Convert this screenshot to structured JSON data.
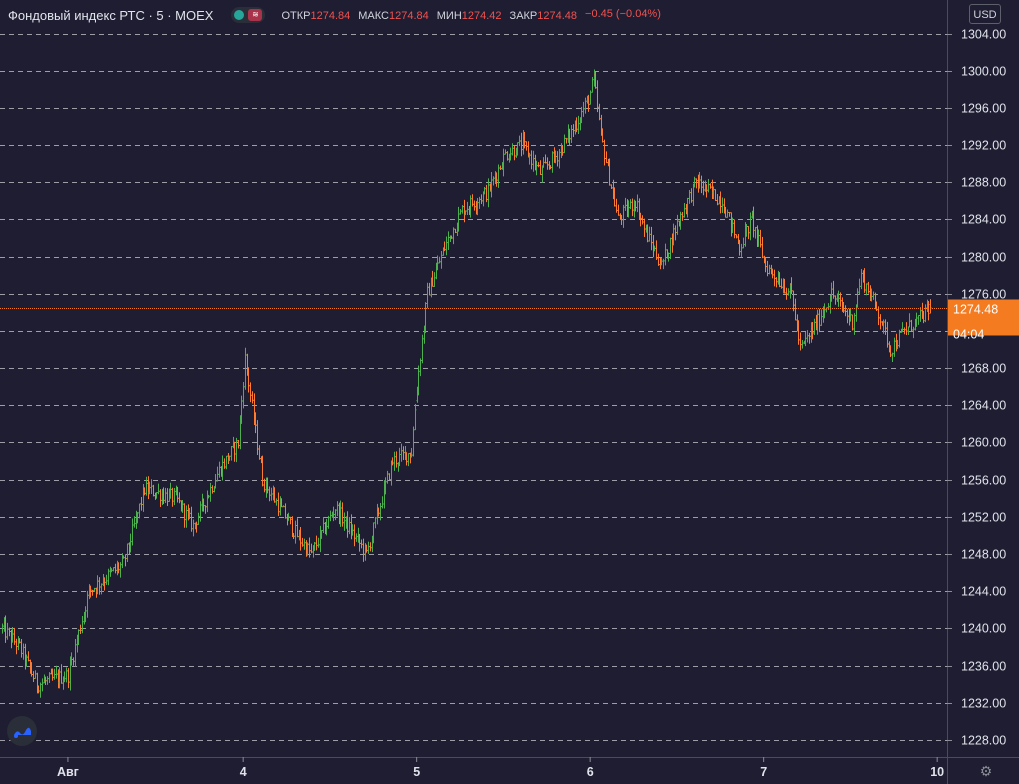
{
  "legend": {
    "symbol": "Фондовый индекс РТС · 5 · MOEX",
    "open_label": "ОТКР",
    "open": "1274.84",
    "high_label": "МАКС",
    "high": "1274.84",
    "low_label": "МИН",
    "low": "1274.42",
    "close_label": "ЗАКР",
    "close": "1274.48",
    "change": "−0.45 (−0.04%)"
  },
  "currency": "USD",
  "colors": {
    "up": "#4caf50",
    "down": "#ff7b32",
    "background": "#1e1d31",
    "price_tag": "#f47b20"
  },
  "icons": {
    "logo": "tradingview-logo-icon",
    "settings": "gear-icon",
    "toggle": "toggle-icon"
  },
  "chart_data": {
    "type": "bar",
    "title": "Фондовый индекс РТС",
    "ylim": [
      1226,
      1306
    ],
    "y_ticks": [
      "1304.00",
      "1300.00",
      "1296.00",
      "1292.00",
      "1288.00",
      "1284.00",
      "1280.00",
      "1276.00",
      "1272.00",
      "1268.00",
      "1264.00",
      "1260.00",
      "1256.00",
      "1252.00",
      "1248.00",
      "1244.00",
      "1240.00",
      "1236.00",
      "1232.00",
      "1228.00"
    ],
    "x_ticks": [
      {
        "label": "Авг",
        "index": 38
      },
      {
        "label": "4",
        "index": 139
      },
      {
        "label": "5",
        "index": 239
      },
      {
        "label": "6",
        "index": 339
      },
      {
        "label": "7",
        "index": 439
      },
      {
        "label": "10",
        "index": 539
      }
    ],
    "grid": "horizontal-dashed",
    "last_price": "1274.48",
    "countdown": "04:04",
    "bars_per_day": 100,
    "total_bars": 536,
    "series": [
      {
        "anchors": [
          [
            0,
            1240
          ],
          [
            10,
            1238
          ],
          [
            20,
            1234
          ],
          [
            38,
            1235
          ],
          [
            50,
            1244
          ],
          [
            70,
            1247
          ],
          [
            82,
            1255
          ],
          [
            100,
            1254
          ],
          [
            110,
            1251
          ],
          [
            125,
            1257
          ],
          [
            136,
            1260
          ],
          [
            140,
            1269
          ],
          [
            150,
            1256
          ],
          [
            170,
            1250
          ],
          [
            178,
            1248
          ],
          [
            192,
            1253
          ],
          [
            210,
            1248
          ],
          [
            225,
            1258
          ],
          [
            236,
            1259
          ],
          [
            239,
            1266
          ],
          [
            245,
            1276
          ],
          [
            255,
            1281
          ],
          [
            265,
            1285
          ],
          [
            280,
            1287
          ],
          [
            290,
            1291
          ],
          [
            300,
            1292
          ],
          [
            310,
            1289
          ],
          [
            320,
            1291
          ],
          [
            330,
            1294
          ],
          [
            338,
            1297
          ],
          [
            341,
            1299
          ],
          [
            345,
            1293
          ],
          [
            355,
            1284
          ],
          [
            365,
            1286
          ],
          [
            370,
            1283
          ],
          [
            380,
            1279
          ],
          [
            390,
            1284
          ],
          [
            400,
            1288
          ],
          [
            415,
            1286
          ],
          [
            425,
            1281
          ],
          [
            432,
            1284
          ],
          [
            440,
            1279
          ],
          [
            455,
            1276
          ],
          [
            460,
            1270
          ],
          [
            470,
            1273
          ],
          [
            478,
            1276
          ],
          [
            490,
            1273
          ],
          [
            495,
            1278
          ],
          [
            505,
            1274
          ],
          [
            512,
            1270
          ],
          [
            520,
            1272
          ],
          [
            536,
            1274.48
          ]
        ]
      }
    ]
  }
}
